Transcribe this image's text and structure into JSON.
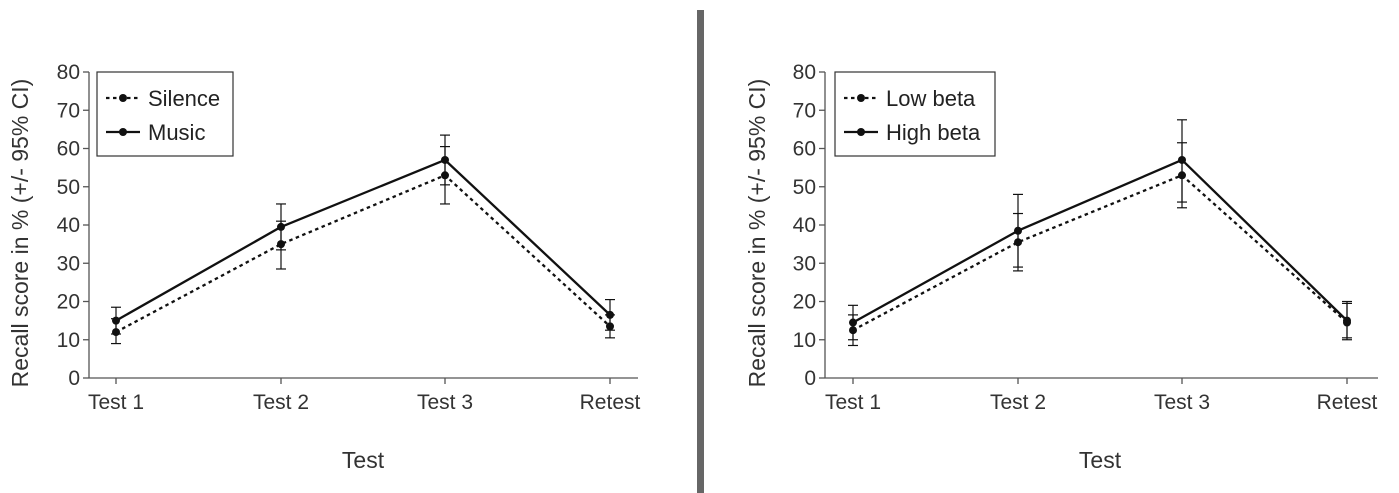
{
  "chart_data": [
    {
      "type": "line",
      "title": "",
      "xlabel": "Test",
      "ylabel": "Recall score in % (+/- 95% CI)",
      "ylim": [
        0,
        80
      ],
      "yticks": [
        0,
        10,
        20,
        30,
        40,
        50,
        60,
        70,
        80
      ],
      "categories": [
        "Test 1",
        "Test 2",
        "Test 3",
        "Retest"
      ],
      "legend_position": "top-left",
      "grid": false,
      "series": [
        {
          "name": "Silence",
          "style": "dotted",
          "values": [
            12,
            35,
            53,
            13.5
          ],
          "ci_low": [
            9,
            28.5,
            45.5,
            10.5
          ],
          "ci_high": [
            15.5,
            41,
            60.5,
            16.5
          ]
        },
        {
          "name": "Music",
          "style": "solid",
          "values": [
            15,
            39.5,
            57,
            16.5
          ],
          "ci_low": [
            11.5,
            33.5,
            50.5,
            12.5
          ],
          "ci_high": [
            18.5,
            45.5,
            63.5,
            20.5
          ]
        }
      ]
    },
    {
      "type": "line",
      "title": "",
      "xlabel": "Test",
      "ylabel": "Recall score in % (+/- 95% CI)",
      "ylim": [
        0,
        80
      ],
      "yticks": [
        0,
        10,
        20,
        30,
        40,
        50,
        60,
        70,
        80
      ],
      "categories": [
        "Test 1",
        "Test 2",
        "Test 3",
        "Retest"
      ],
      "legend_position": "top-left",
      "grid": false,
      "series": [
        {
          "name": "Low beta",
          "style": "dotted",
          "values": [
            12.5,
            35.5,
            53,
            14.5
          ],
          "ci_low": [
            8.5,
            28,
            44.5,
            10
          ],
          "ci_high": [
            16.5,
            43,
            61.5,
            19.5
          ]
        },
        {
          "name": "High beta",
          "style": "solid",
          "values": [
            14.5,
            38.5,
            57,
            15
          ],
          "ci_low": [
            10,
            29,
            46,
            10.5
          ],
          "ci_high": [
            19,
            48,
            67.5,
            20
          ]
        }
      ]
    }
  ],
  "colors": {
    "line": "#111111",
    "text": "#333333",
    "divider": "#666666",
    "axis": "#555555"
  }
}
